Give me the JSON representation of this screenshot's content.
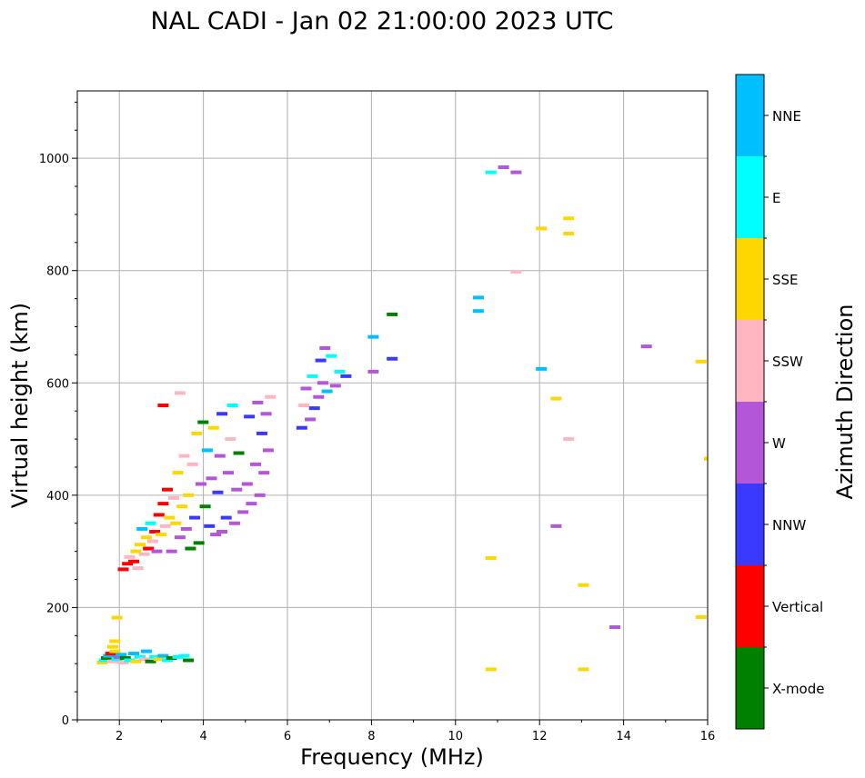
{
  "chart_data": {
    "type": "scatter",
    "title": "NAL CADI - Jan 02 21:00:00 2023 UTC",
    "xlabel": "Frequency (MHz)",
    "ylabel": "Virtual height (km)",
    "xlim": [
      1,
      16
    ],
    "ylim": [
      0,
      1120
    ],
    "xticks": [
      2,
      4,
      6,
      8,
      10,
      12,
      14,
      16
    ],
    "yticks": [
      0,
      200,
      400,
      600,
      800,
      1000
    ],
    "grid": true,
    "colorbar": {
      "label": "Azimuth Direction",
      "categories": [
        {
          "name": "X-mode",
          "color": "#008000"
        },
        {
          "name": "Vertical",
          "color": "#ff0000"
        },
        {
          "name": "NNW",
          "color": "#3a3aff"
        },
        {
          "name": "W",
          "color": "#b356d8"
        },
        {
          "name": "SSW",
          "color": "#ffb6c1"
        },
        {
          "name": "SSE",
          "color": "#ffd700"
        },
        {
          "name": "E",
          "color": "#00ffff"
        },
        {
          "name": "NNE",
          "color": "#00bfff"
        }
      ]
    },
    "points": [
      {
        "f": 1.55,
        "h": 102,
        "c": "SSE"
      },
      {
        "f": 1.6,
        "h": 106,
        "c": "E"
      },
      {
        "f": 1.65,
        "h": 110,
        "c": "X-mode"
      },
      {
        "f": 1.7,
        "h": 114,
        "c": "NNE"
      },
      {
        "f": 1.75,
        "h": 118,
        "c": "Vertical"
      },
      {
        "f": 1.8,
        "h": 104,
        "c": "SSW"
      },
      {
        "f": 1.85,
        "h": 122,
        "c": "SSE"
      },
      {
        "f": 1.9,
        "h": 108,
        "c": "E"
      },
      {
        "f": 1.95,
        "h": 112,
        "c": "W"
      },
      {
        "f": 2.0,
        "h": 116,
        "c": "NNE"
      },
      {
        "f": 2.05,
        "h": 102,
        "c": "SSW"
      },
      {
        "f": 2.1,
        "h": 110,
        "c": "X-mode"
      },
      {
        "f": 2.2,
        "h": 106,
        "c": "E"
      },
      {
        "f": 2.3,
        "h": 118,
        "c": "NNE"
      },
      {
        "f": 2.35,
        "h": 104,
        "c": "SSE"
      },
      {
        "f": 2.45,
        "h": 112,
        "c": "E"
      },
      {
        "f": 2.55,
        "h": 108,
        "c": "SSW"
      },
      {
        "f": 2.6,
        "h": 122,
        "c": "NNE"
      },
      {
        "f": 2.7,
        "h": 104,
        "c": "X-mode"
      },
      {
        "f": 2.8,
        "h": 112,
        "c": "E"
      },
      {
        "f": 2.9,
        "h": 108,
        "c": "SSE"
      },
      {
        "f": 3.0,
        "h": 114,
        "c": "NNE"
      },
      {
        "f": 3.1,
        "h": 106,
        "c": "E"
      },
      {
        "f": 3.2,
        "h": 110,
        "c": "X-mode"
      },
      {
        "f": 3.35,
        "h": 112,
        "c": "E"
      },
      {
        "f": 3.5,
        "h": 114,
        "c": "E"
      },
      {
        "f": 3.6,
        "h": 106,
        "c": "X-mode"
      },
      {
        "f": 1.8,
        "h": 130,
        "c": "SSE"
      },
      {
        "f": 1.85,
        "h": 140,
        "c": "SSE"
      },
      {
        "f": 1.9,
        "h": 182,
        "c": "SSE"
      },
      {
        "f": 2.05,
        "h": 268,
        "c": "Vertical"
      },
      {
        "f": 2.15,
        "h": 278,
        "c": "Vertical"
      },
      {
        "f": 2.2,
        "h": 290,
        "c": "SSW"
      },
      {
        "f": 2.3,
        "h": 282,
        "c": "Vertical"
      },
      {
        "f": 2.35,
        "h": 300,
        "c": "SSE"
      },
      {
        "f": 2.4,
        "h": 270,
        "c": "SSW"
      },
      {
        "f": 2.45,
        "h": 312,
        "c": "SSE"
      },
      {
        "f": 2.5,
        "h": 340,
        "c": "NNE"
      },
      {
        "f": 2.55,
        "h": 295,
        "c": "SSW"
      },
      {
        "f": 2.6,
        "h": 325,
        "c": "SSE"
      },
      {
        "f": 2.65,
        "h": 305,
        "c": "Vertical"
      },
      {
        "f": 2.7,
        "h": 350,
        "c": "E"
      },
      {
        "f": 2.75,
        "h": 318,
        "c": "SSW"
      },
      {
        "f": 2.8,
        "h": 335,
        "c": "Vertical"
      },
      {
        "f": 2.85,
        "h": 300,
        "c": "W"
      },
      {
        "f": 2.9,
        "h": 365,
        "c": "Vertical"
      },
      {
        "f": 2.95,
        "h": 330,
        "c": "SSE"
      },
      {
        "f": 3.0,
        "h": 385,
        "c": "Vertical"
      },
      {
        "f": 3.05,
        "h": 345,
        "c": "SSW"
      },
      {
        "f": 3.1,
        "h": 410,
        "c": "Vertical"
      },
      {
        "f": 3.15,
        "h": 360,
        "c": "SSE"
      },
      {
        "f": 3.2,
        "h": 300,
        "c": "W"
      },
      {
        "f": 3.25,
        "h": 395,
        "c": "SSW"
      },
      {
        "f": 3.3,
        "h": 350,
        "c": "SSE"
      },
      {
        "f": 3.35,
        "h": 440,
        "c": "SSE"
      },
      {
        "f": 3.4,
        "h": 325,
        "c": "W"
      },
      {
        "f": 3.45,
        "h": 380,
        "c": "SSE"
      },
      {
        "f": 3.5,
        "h": 470,
        "c": "SSW"
      },
      {
        "f": 3.55,
        "h": 340,
        "c": "W"
      },
      {
        "f": 3.6,
        "h": 400,
        "c": "SSE"
      },
      {
        "f": 3.65,
        "h": 305,
        "c": "X-mode"
      },
      {
        "f": 3.7,
        "h": 455,
        "c": "SSW"
      },
      {
        "f": 3.75,
        "h": 360,
        "c": "NNW"
      },
      {
        "f": 3.8,
        "h": 510,
        "c": "SSE"
      },
      {
        "f": 3.85,
        "h": 315,
        "c": "X-mode"
      },
      {
        "f": 3.9,
        "h": 420,
        "c": "W"
      },
      {
        "f": 3.95,
        "h": 530,
        "c": "X-mode"
      },
      {
        "f": 4.0,
        "h": 380,
        "c": "X-mode"
      },
      {
        "f": 4.05,
        "h": 480,
        "c": "NNE"
      },
      {
        "f": 4.1,
        "h": 345,
        "c": "NNW"
      },
      {
        "f": 4.15,
        "h": 430,
        "c": "W"
      },
      {
        "f": 4.2,
        "h": 520,
        "c": "SSE"
      },
      {
        "f": 4.25,
        "h": 330,
        "c": "W"
      },
      {
        "f": 4.3,
        "h": 405,
        "c": "NNW"
      },
      {
        "f": 4.35,
        "h": 470,
        "c": "W"
      },
      {
        "f": 4.4,
        "h": 335,
        "c": "W"
      },
      {
        "f": 4.5,
        "h": 360,
        "c": "NNW"
      },
      {
        "f": 4.55,
        "h": 440,
        "c": "W"
      },
      {
        "f": 4.6,
        "h": 500,
        "c": "SSW"
      },
      {
        "f": 4.7,
        "h": 350,
        "c": "W"
      },
      {
        "f": 4.75,
        "h": 410,
        "c": "W"
      },
      {
        "f": 4.8,
        "h": 475,
        "c": "X-mode"
      },
      {
        "f": 4.9,
        "h": 370,
        "c": "W"
      },
      {
        "f": 5.0,
        "h": 420,
        "c": "W"
      },
      {
        "f": 5.05,
        "h": 540,
        "c": "NNW"
      },
      {
        "f": 5.1,
        "h": 385,
        "c": "W"
      },
      {
        "f": 5.2,
        "h": 455,
        "c": "W"
      },
      {
        "f": 5.25,
        "h": 565,
        "c": "W"
      },
      {
        "f": 5.3,
        "h": 400,
        "c": "W"
      },
      {
        "f": 5.35,
        "h": 510,
        "c": "NNW"
      },
      {
        "f": 5.4,
        "h": 440,
        "c": "W"
      },
      {
        "f": 5.45,
        "h": 545,
        "c": "W"
      },
      {
        "f": 5.5,
        "h": 480,
        "c": "W"
      },
      {
        "f": 5.55,
        "h": 575,
        "c": "SSW"
      },
      {
        "f": 3.0,
        "h": 560,
        "c": "Vertical"
      },
      {
        "f": 3.4,
        "h": 582,
        "c": "SSW"
      },
      {
        "f": 4.4,
        "h": 545,
        "c": "NNW"
      },
      {
        "f": 4.65,
        "h": 560,
        "c": "E"
      },
      {
        "f": 6.3,
        "h": 520,
        "c": "NNW"
      },
      {
        "f": 6.35,
        "h": 560,
        "c": "SSW"
      },
      {
        "f": 6.4,
        "h": 590,
        "c": "W"
      },
      {
        "f": 6.5,
        "h": 535,
        "c": "W"
      },
      {
        "f": 6.55,
        "h": 612,
        "c": "E"
      },
      {
        "f": 6.6,
        "h": 555,
        "c": "NNW"
      },
      {
        "f": 6.7,
        "h": 575,
        "c": "W"
      },
      {
        "f": 6.75,
        "h": 640,
        "c": "NNW"
      },
      {
        "f": 6.8,
        "h": 600,
        "c": "W"
      },
      {
        "f": 6.85,
        "h": 662,
        "c": "W"
      },
      {
        "f": 6.9,
        "h": 585,
        "c": "NNE"
      },
      {
        "f": 7.0,
        "h": 648,
        "c": "E"
      },
      {
        "f": 7.1,
        "h": 595,
        "c": "W"
      },
      {
        "f": 7.2,
        "h": 620,
        "c": "E"
      },
      {
        "f": 7.35,
        "h": 612,
        "c": "NNW"
      },
      {
        "f": 8.0,
        "h": 620,
        "c": "W"
      },
      {
        "f": 8.0,
        "h": 682,
        "c": "NNE"
      },
      {
        "f": 8.45,
        "h": 643,
        "c": "NNW"
      },
      {
        "f": 8.45,
        "h": 722,
        "c": "X-mode"
      },
      {
        "f": 10.5,
        "h": 752,
        "c": "NNE"
      },
      {
        "f": 10.5,
        "h": 728,
        "c": "NNE"
      },
      {
        "f": 10.8,
        "h": 975,
        "c": "E"
      },
      {
        "f": 11.1,
        "h": 984,
        "c": "W"
      },
      {
        "f": 11.4,
        "h": 975,
        "c": "W"
      },
      {
        "f": 11.4,
        "h": 798,
        "c": "SSW"
      },
      {
        "f": 12.0,
        "h": 875,
        "c": "SSE"
      },
      {
        "f": 12.65,
        "h": 893,
        "c": "SSE"
      },
      {
        "f": 12.65,
        "h": 866,
        "c": "SSE"
      },
      {
        "f": 12.0,
        "h": 625,
        "c": "NNE"
      },
      {
        "f": 12.35,
        "h": 572,
        "c": "SSE"
      },
      {
        "f": 12.65,
        "h": 500,
        "c": "SSW"
      },
      {
        "f": 12.35,
        "h": 345,
        "c": "W"
      },
      {
        "f": 10.8,
        "h": 288,
        "c": "SSE"
      },
      {
        "f": 13.0,
        "h": 240,
        "c": "SSE"
      },
      {
        "f": 13.75,
        "h": 165,
        "c": "W"
      },
      {
        "f": 10.8,
        "h": 90,
        "c": "SSE"
      },
      {
        "f": 13.0,
        "h": 90,
        "c": "SSE"
      },
      {
        "f": 14.5,
        "h": 665,
        "c": "W"
      },
      {
        "f": 15.8,
        "h": 638,
        "c": "SSE"
      },
      {
        "f": 15.8,
        "h": 183,
        "c": "SSE"
      },
      {
        "f": 16.0,
        "h": 465,
        "c": "SSE"
      }
    ]
  }
}
